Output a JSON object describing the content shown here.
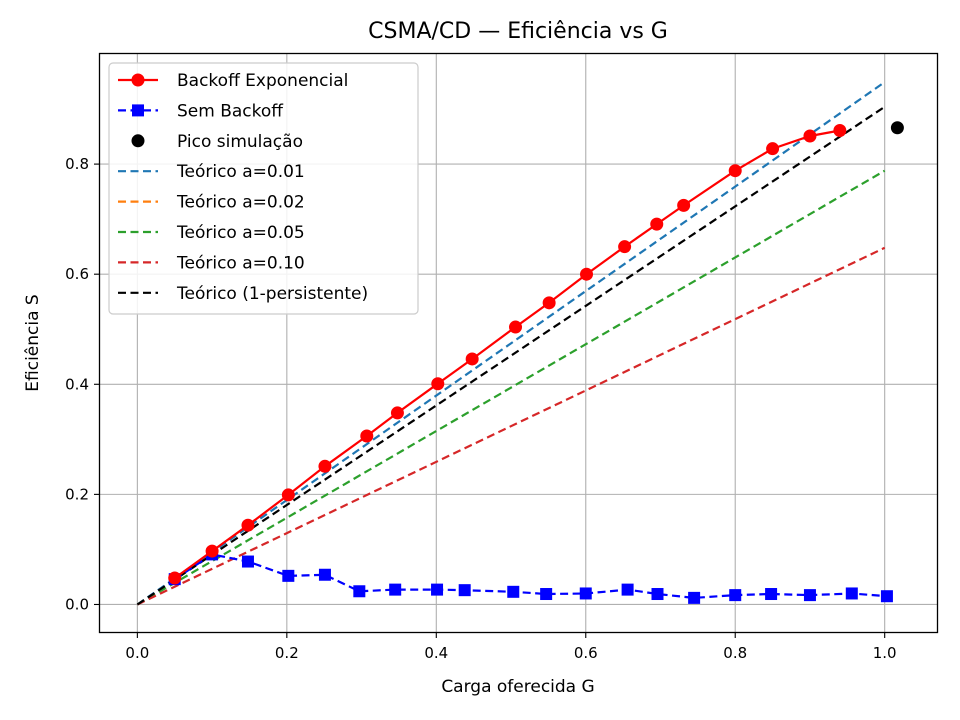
{
  "chart_data": {
    "type": "line",
    "title": "CSMA/CD — Eficiência vs G",
    "xlabel": "Carga oferecida G",
    "ylabel": "Eficiência S",
    "xlim": [
      -0.05,
      1.07
    ],
    "ylim": [
      -0.05,
      1.0
    ],
    "xticks": [
      0.0,
      0.2,
      0.4,
      0.6,
      0.8,
      1.0
    ],
    "xtick_labels": [
      "0.0",
      "0.2",
      "0.4",
      "0.6",
      "0.8",
      "1.0"
    ],
    "yticks": [
      0.0,
      0.2,
      0.4,
      0.6,
      0.8
    ],
    "ytick_labels": [
      "0.0",
      "0.2",
      "0.4",
      "0.6",
      "0.8"
    ],
    "grid": true,
    "legend_position": "top-left",
    "series": [
      {
        "name": "Backoff Exponencial",
        "color": "#ff0000",
        "style": "solid",
        "marker": "circle",
        "x": [
          0.05,
          0.1,
          0.148,
          0.202,
          0.251,
          0.307,
          0.348,
          0.402,
          0.448,
          0.506,
          0.551,
          0.601,
          0.652,
          0.695,
          0.731,
          0.8,
          0.85,
          0.9,
          0.94
        ],
        "y": [
          0.048,
          0.097,
          0.144,
          0.199,
          0.251,
          0.306,
          0.348,
          0.401,
          0.446,
          0.504,
          0.548,
          0.6,
          0.65,
          0.691,
          0.725,
          0.788,
          0.828,
          0.851,
          0.861
        ]
      },
      {
        "name": "Sem Backoff",
        "color": "#0000ff",
        "style": "dashed",
        "marker": "square",
        "x": [
          0.05,
          0.1,
          0.148,
          0.202,
          0.251,
          0.297,
          0.345,
          0.401,
          0.438,
          0.503,
          0.547,
          0.6,
          0.656,
          0.696,
          0.745,
          0.8,
          0.848,
          0.9,
          0.956,
          1.003
        ],
        "y": [
          0.046,
          0.091,
          0.078,
          0.052,
          0.054,
          0.024,
          0.027,
          0.027,
          0.026,
          0.023,
          0.019,
          0.02,
          0.027,
          0.019,
          0.012,
          0.017,
          0.019,
          0.017,
          0.02,
          0.015
        ]
      },
      {
        "name": "Pico simulação",
        "color": "#000000",
        "style": "none",
        "marker": "circle",
        "x": [
          1.017
        ],
        "y": [
          0.866
        ]
      },
      {
        "name": "Teórico a=0.01",
        "color": "#1f77b4",
        "style": "dashed",
        "marker": "none",
        "x": [
          0.0,
          1.0
        ],
        "y": [
          0.0,
          0.949
        ]
      },
      {
        "name": "Teórico a=0.02",
        "color": "#ff7f0e",
        "style": "dashed",
        "marker": "none",
        "x": [],
        "y": []
      },
      {
        "name": "Teórico a=0.05",
        "color": "#2ca02c",
        "style": "dashed",
        "marker": "none",
        "x": [
          0.0,
          1.0
        ],
        "y": [
          0.0,
          0.788
        ]
      },
      {
        "name": "Teórico a=0.10",
        "color": "#d62728",
        "style": "dashed",
        "marker": "none",
        "x": [
          0.0,
          1.0
        ],
        "y": [
          0.0,
          0.648
        ]
      },
      {
        "name": "Teórico (1-persistente)",
        "color": "#000000",
        "style": "dashed",
        "marker": "none",
        "x": [
          0.0,
          1.0
        ],
        "y": [
          0.0,
          0.904
        ]
      }
    ]
  }
}
